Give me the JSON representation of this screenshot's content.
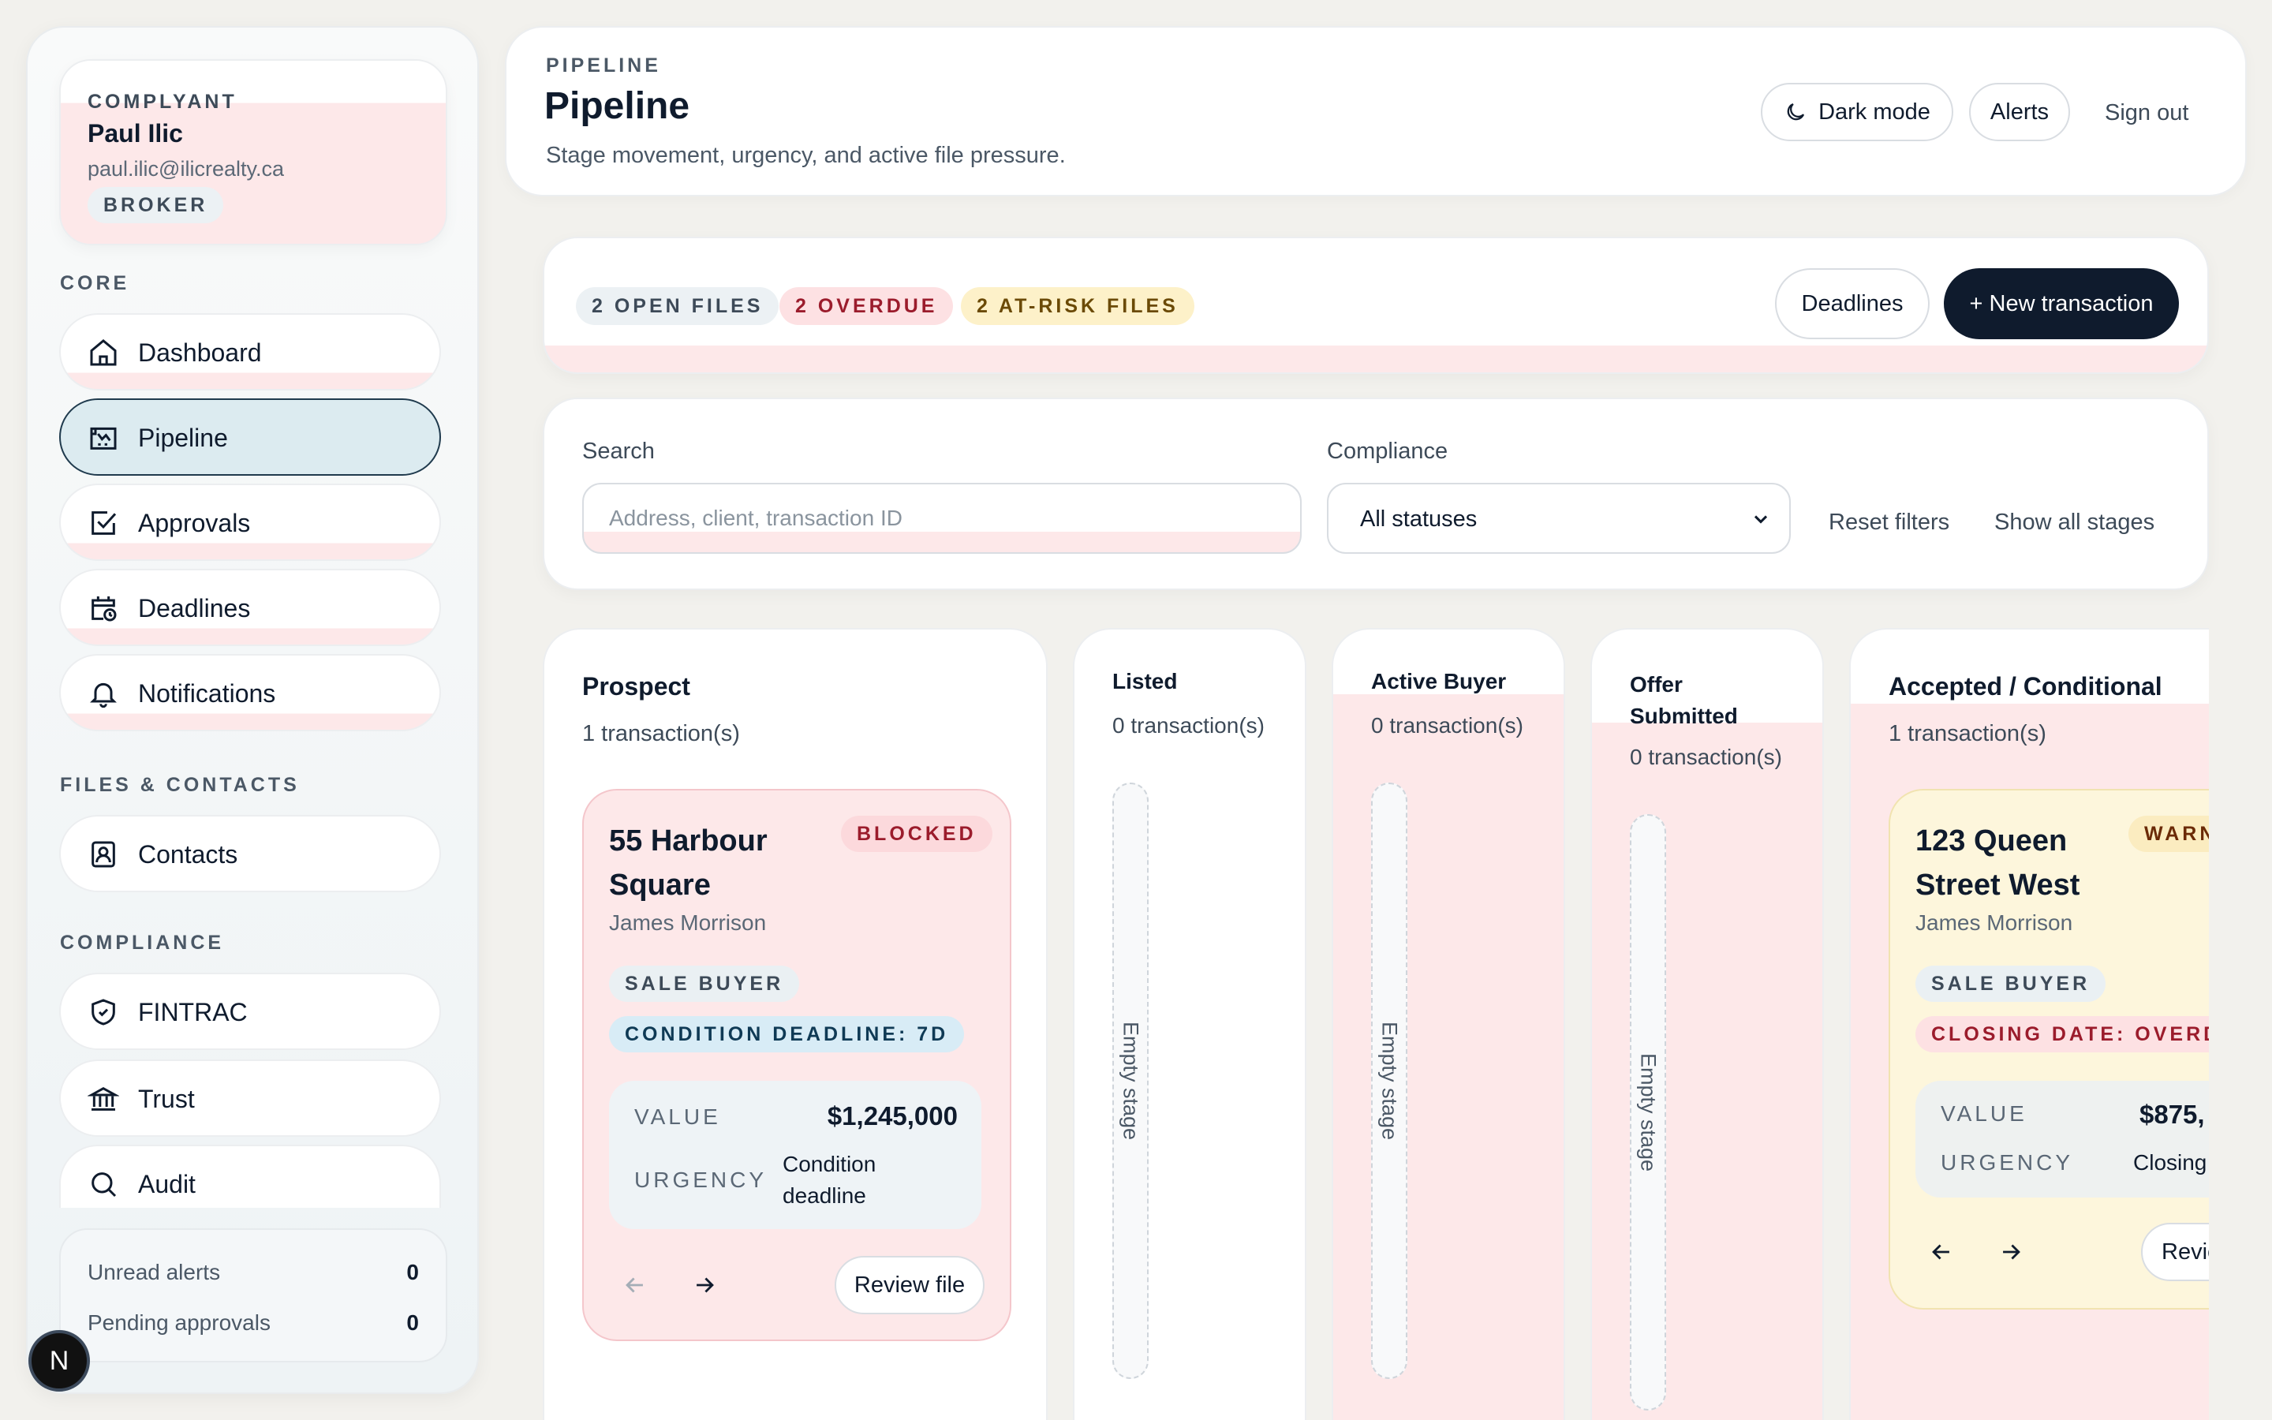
{
  "sidebar": {
    "profile": {
      "brand": "COMPLYANT",
      "name": "Paul Ilic",
      "email": "paul.ilic@ilicrealty.ca",
      "role": "BROKER"
    },
    "sections": {
      "core": "CORE",
      "files": "FILES & CONTACTS",
      "compliance": "COMPLIANCE"
    },
    "items": [
      {
        "label": "Dashboard",
        "icon": "home-icon"
      },
      {
        "label": "Pipeline",
        "icon": "pipeline-icon",
        "active": true
      },
      {
        "label": "Approvals",
        "icon": "checkbox-icon"
      },
      {
        "label": "Deadlines",
        "icon": "calendar-clock-icon"
      },
      {
        "label": "Notifications",
        "icon": "bell-icon"
      },
      {
        "label": "Contacts",
        "icon": "contact-card-icon"
      },
      {
        "label": "FINTRAC",
        "icon": "shield-icon"
      },
      {
        "label": "Trust",
        "icon": "bank-icon"
      },
      {
        "label": "Audit",
        "icon": "search-icon"
      }
    ],
    "stats": {
      "unread_label": "Unread alerts",
      "unread_value": "0",
      "pending_label": "Pending approvals",
      "pending_value": "0"
    },
    "badge": "N"
  },
  "header": {
    "eyebrow": "PIPELINE",
    "title": "Pipeline",
    "subtitle": "Stage movement, urgency, and active file pressure.",
    "dark_mode": "Dark mode",
    "alerts": "Alerts",
    "sign_out": "Sign out"
  },
  "summary": {
    "open_files": "2 OPEN FILES",
    "overdue": "2 OVERDUE",
    "at_risk": "2 AT-RISK FILES",
    "deadlines": "Deadlines",
    "new_transaction": "+ New transaction"
  },
  "filters": {
    "search_label": "Search",
    "search_placeholder": "Address, client, transaction ID",
    "search_value": "",
    "compliance_label": "Compliance",
    "compliance_value": "All statuses",
    "reset": "Reset filters",
    "show_all": "Show all stages"
  },
  "columns": [
    {
      "title": "Prospect",
      "count": "1 transaction(s)",
      "card": {
        "address": "55 Harbour Square",
        "client": "James Morrison",
        "status": "BLOCKED",
        "tag1": "SALE BUYER",
        "tag2": "CONDITION DEADLINE: 7D",
        "value_label": "VALUE",
        "value": "$1,245,000",
        "urgency_label": "URGENCY",
        "urgency": "Condition deadline",
        "review": "Review file"
      }
    },
    {
      "title": "Listed",
      "count": "0 transaction(s)",
      "empty": "Empty stage"
    },
    {
      "title": "Active Buyer",
      "count": "0 transaction(s)",
      "empty": "Empty stage"
    },
    {
      "title": "Offer Submitted",
      "count": "0 transaction(s)",
      "empty": "Empty stage"
    },
    {
      "title": "Accepted / Conditional",
      "count": "1 transaction(s)",
      "card": {
        "address": "123 Queen Street West",
        "client": "James Morrison",
        "status": "WARN",
        "tag1": "SALE BUYER",
        "tag2": "CLOSING DATE: OVERDU",
        "value_label": "VALUE",
        "value": "$875,",
        "urgency_label": "URGENCY",
        "urgency": "Closing",
        "review": "Revie"
      }
    }
  ],
  "colors": {
    "accent_dark": "#0f1b2d",
    "active_nav": "#dcebf0",
    "blocked": "#9b1c2c",
    "warning_chip": "#fdf1c9",
    "card_pink": "#fde8e9",
    "card_yellow": "#fdf6dc"
  }
}
